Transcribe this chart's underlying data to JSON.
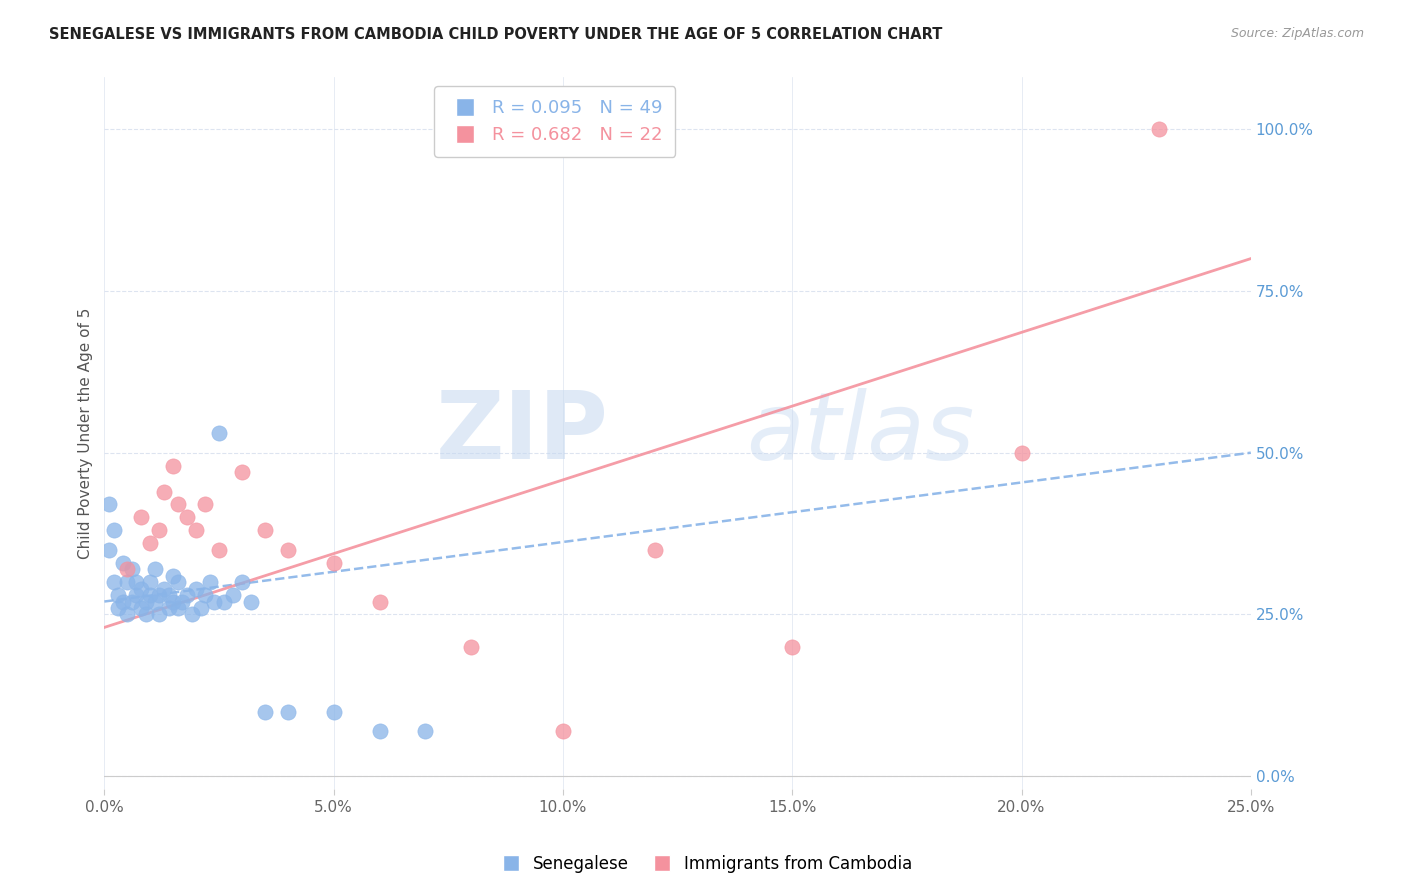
{
  "title": "SENEGALESE VS IMMIGRANTS FROM CAMBODIA CHILD POVERTY UNDER THE AGE OF 5 CORRELATION CHART",
  "source": "Source: ZipAtlas.com",
  "ylabel": "Child Poverty Under the Age of 5",
  "xlim": [
    0.0,
    0.25
  ],
  "ylim": [
    -0.02,
    1.08
  ],
  "xticks": [
    0.0,
    0.05,
    0.1,
    0.15,
    0.2,
    0.25
  ],
  "ytick_labels": [
    "0.0%",
    "25.0%",
    "50.0%",
    "75.0%",
    "100.0%"
  ],
  "ytick_values": [
    0.0,
    0.25,
    0.5,
    0.75,
    1.0
  ],
  "senegalese_color": "#89b4e8",
  "cambodia_color": "#f4929e",
  "senegalese_R": 0.095,
  "senegalese_N": 49,
  "cambodia_R": 0.682,
  "cambodia_N": 22,
  "watermark_zip": "ZIP",
  "watermark_atlas": "atlas",
  "background_color": "#ffffff",
  "grid_color": "#dde4f0",
  "senegalese_x": [
    0.001,
    0.001,
    0.002,
    0.002,
    0.003,
    0.003,
    0.004,
    0.004,
    0.005,
    0.005,
    0.006,
    0.006,
    0.007,
    0.007,
    0.008,
    0.008,
    0.009,
    0.009,
    0.01,
    0.01,
    0.011,
    0.011,
    0.012,
    0.012,
    0.013,
    0.014,
    0.014,
    0.015,
    0.015,
    0.016,
    0.016,
    0.017,
    0.018,
    0.019,
    0.02,
    0.021,
    0.022,
    0.023,
    0.024,
    0.025,
    0.026,
    0.028,
    0.03,
    0.032,
    0.035,
    0.04,
    0.05,
    0.06,
    0.07
  ],
  "senegalese_y": [
    0.42,
    0.35,
    0.38,
    0.3,
    0.28,
    0.26,
    0.33,
    0.27,
    0.3,
    0.25,
    0.32,
    0.27,
    0.28,
    0.3,
    0.29,
    0.26,
    0.27,
    0.25,
    0.3,
    0.28,
    0.32,
    0.27,
    0.28,
    0.25,
    0.29,
    0.28,
    0.26,
    0.31,
    0.27,
    0.3,
    0.26,
    0.27,
    0.28,
    0.25,
    0.29,
    0.26,
    0.28,
    0.3,
    0.27,
    0.53,
    0.27,
    0.28,
    0.3,
    0.27,
    0.1,
    0.1,
    0.1,
    0.07,
    0.07
  ],
  "cambodia_x": [
    0.005,
    0.008,
    0.01,
    0.012,
    0.013,
    0.015,
    0.016,
    0.018,
    0.02,
    0.022,
    0.025,
    0.03,
    0.035,
    0.04,
    0.05,
    0.06,
    0.08,
    0.1,
    0.12,
    0.15,
    0.2,
    0.23
  ],
  "cambodia_y": [
    0.32,
    0.4,
    0.36,
    0.38,
    0.44,
    0.48,
    0.42,
    0.4,
    0.38,
    0.42,
    0.35,
    0.47,
    0.38,
    0.35,
    0.33,
    0.27,
    0.2,
    0.07,
    0.35,
    0.2,
    0.5,
    1.0
  ],
  "trend_senegalese_x0": 0.0,
  "trend_senegalese_x1": 0.25,
  "trend_senegalese_y0": 0.27,
  "trend_senegalese_y1": 0.5,
  "trend_cambodia_x0": 0.0,
  "trend_cambodia_x1": 0.25,
  "trend_cambodia_y0": 0.23,
  "trend_cambodia_y1": 0.8
}
